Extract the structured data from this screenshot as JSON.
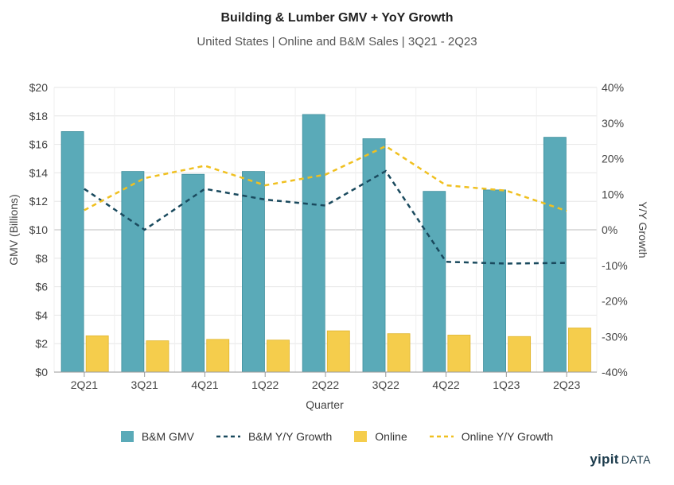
{
  "chart_data": {
    "type": "bar",
    "title": "Building & Lumber GMV + YoY Growth",
    "subtitle": "United States | Online and B&M Sales | 3Q21 - 2Q23",
    "xlabel": "Quarter",
    "ylabel": "GMV (Billions)",
    "y2label": "Y/Y Growth",
    "categories": [
      "2Q21",
      "3Q21",
      "4Q21",
      "1Q22",
      "2Q22",
      "3Q22",
      "4Q22",
      "1Q23",
      "2Q23"
    ],
    "ylim": [
      0,
      20
    ],
    "y2lim": [
      -40,
      40
    ],
    "yticks": [
      "$0",
      "$2",
      "$4",
      "$6",
      "$8",
      "$10",
      "$12",
      "$14",
      "$16",
      "$18",
      "$20"
    ],
    "y2ticks": [
      "-40%",
      "-30%",
      "-20%",
      "-10%",
      "0%",
      "10%",
      "20%",
      "30%",
      "40%"
    ],
    "grid": true,
    "legend_position": "bottom",
    "series": [
      {
        "name": "B&M GMV",
        "kind": "bar",
        "axis": "left",
        "color": "#5aaab8",
        "values": [
          16.9,
          14.1,
          13.9,
          14.1,
          18.1,
          16.4,
          12.7,
          12.8,
          16.5
        ]
      },
      {
        "name": "B&M Y/Y Growth",
        "kind": "line",
        "style": "dashed",
        "axis": "right",
        "color": "#1a4a5e",
        "values": [
          11.5,
          0,
          11.5,
          8.5,
          6.8,
          16.5,
          -9,
          -9.5,
          -9.3
        ]
      },
      {
        "name": "Online",
        "kind": "bar",
        "axis": "left",
        "color": "#f5cd4c",
        "values": [
          2.55,
          2.2,
          2.3,
          2.25,
          2.9,
          2.7,
          2.6,
          2.5,
          3.1
        ]
      },
      {
        "name": "Online Y/Y Growth",
        "kind": "line",
        "style": "dashed",
        "axis": "right",
        "color": "#f0c020",
        "values": [
          5.5,
          14.5,
          18,
          12.5,
          15.5,
          23.5,
          12.5,
          11,
          5.3
        ]
      }
    ]
  },
  "branding": {
    "logo_main": "yipit",
    "logo_suffix": "DATA"
  }
}
